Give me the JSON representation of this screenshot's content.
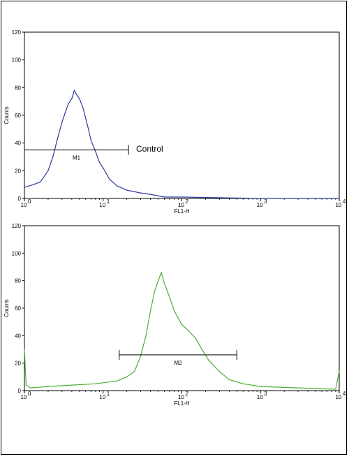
{
  "chart_data": [
    {
      "type": "line",
      "xscale": "log",
      "xlim": [
        1,
        10000
      ],
      "ylim": [
        0,
        120
      ],
      "xlabel": "FL1-H",
      "ylabel": "Counts",
      "x_ticks": [
        1,
        10,
        100,
        1000,
        10000
      ],
      "x_tick_labels": [
        "10",
        "10",
        "10",
        "10",
        "10"
      ],
      "x_tick_exponents": [
        "0",
        "1",
        "2",
        "3",
        "4"
      ],
      "y_ticks": [
        0,
        20,
        40,
        60,
        80,
        100,
        120
      ],
      "color": "#2b3a9a",
      "series": [
        {
          "x": [
            1.0,
            1.3,
            1.6,
            2.0,
            2.3,
            2.6,
            3.0,
            3.3,
            3.6,
            4.0,
            4.3,
            4.6,
            5.0,
            5.5,
            6.0,
            6.5,
            7.0,
            8.0,
            9.0,
            10.0,
            12.0,
            15.0,
            20.0,
            30.0,
            40.0,
            60.0,
            100.0,
            1000.0,
            10000.0
          ],
          "y": [
            8,
            10,
            12,
            20,
            30,
            42,
            55,
            62,
            68,
            72,
            78,
            75,
            72,
            66,
            58,
            50,
            42,
            34,
            26,
            22,
            14,
            9,
            6,
            4,
            3,
            1,
            1,
            0,
            0
          ]
        }
      ],
      "markers": [
        {
          "label": "M1",
          "x_start": 1.0,
          "x_end": 21.0,
          "y": 35
        }
      ],
      "annotation": "Control"
    },
    {
      "type": "line",
      "xscale": "log",
      "xlim": [
        1,
        10000
      ],
      "ylim": [
        0,
        120
      ],
      "xlabel": "FL1-H",
      "ylabel": "Counts",
      "x_ticks": [
        1,
        10,
        100,
        1000,
        10000
      ],
      "x_tick_labels": [
        "10",
        "10",
        "10",
        "10",
        "10"
      ],
      "x_tick_exponents": [
        "0",
        "1",
        "2",
        "3",
        "4"
      ],
      "y_ticks": [
        0,
        20,
        40,
        60,
        80,
        100,
        120
      ],
      "color": "#4caf32",
      "series": [
        {
          "x": [
            1.0,
            1.05,
            1.2,
            2.0,
            4.0,
            8.0,
            15.0,
            20.0,
            25.0,
            30.0,
            35.0,
            40.0,
            45.0,
            50.0,
            55.0,
            60.0,
            70.0,
            80.0,
            100.0,
            120.0,
            150.0,
            180.0,
            220.0,
            300.0,
            400.0,
            600.0,
            1000.0,
            3000.0,
            9000.0,
            10000.0
          ],
          "y": [
            30,
            4,
            2,
            3,
            4,
            5,
            7,
            10,
            14,
            25,
            40,
            58,
            72,
            80,
            86,
            78,
            68,
            58,
            48,
            44,
            38,
            30,
            22,
            14,
            8,
            5,
            3,
            2,
            1,
            14
          ]
        }
      ],
      "markers": [
        {
          "label": "M2",
          "x_start": 16.0,
          "x_end": 500.0,
          "y": 26
        }
      ]
    }
  ]
}
